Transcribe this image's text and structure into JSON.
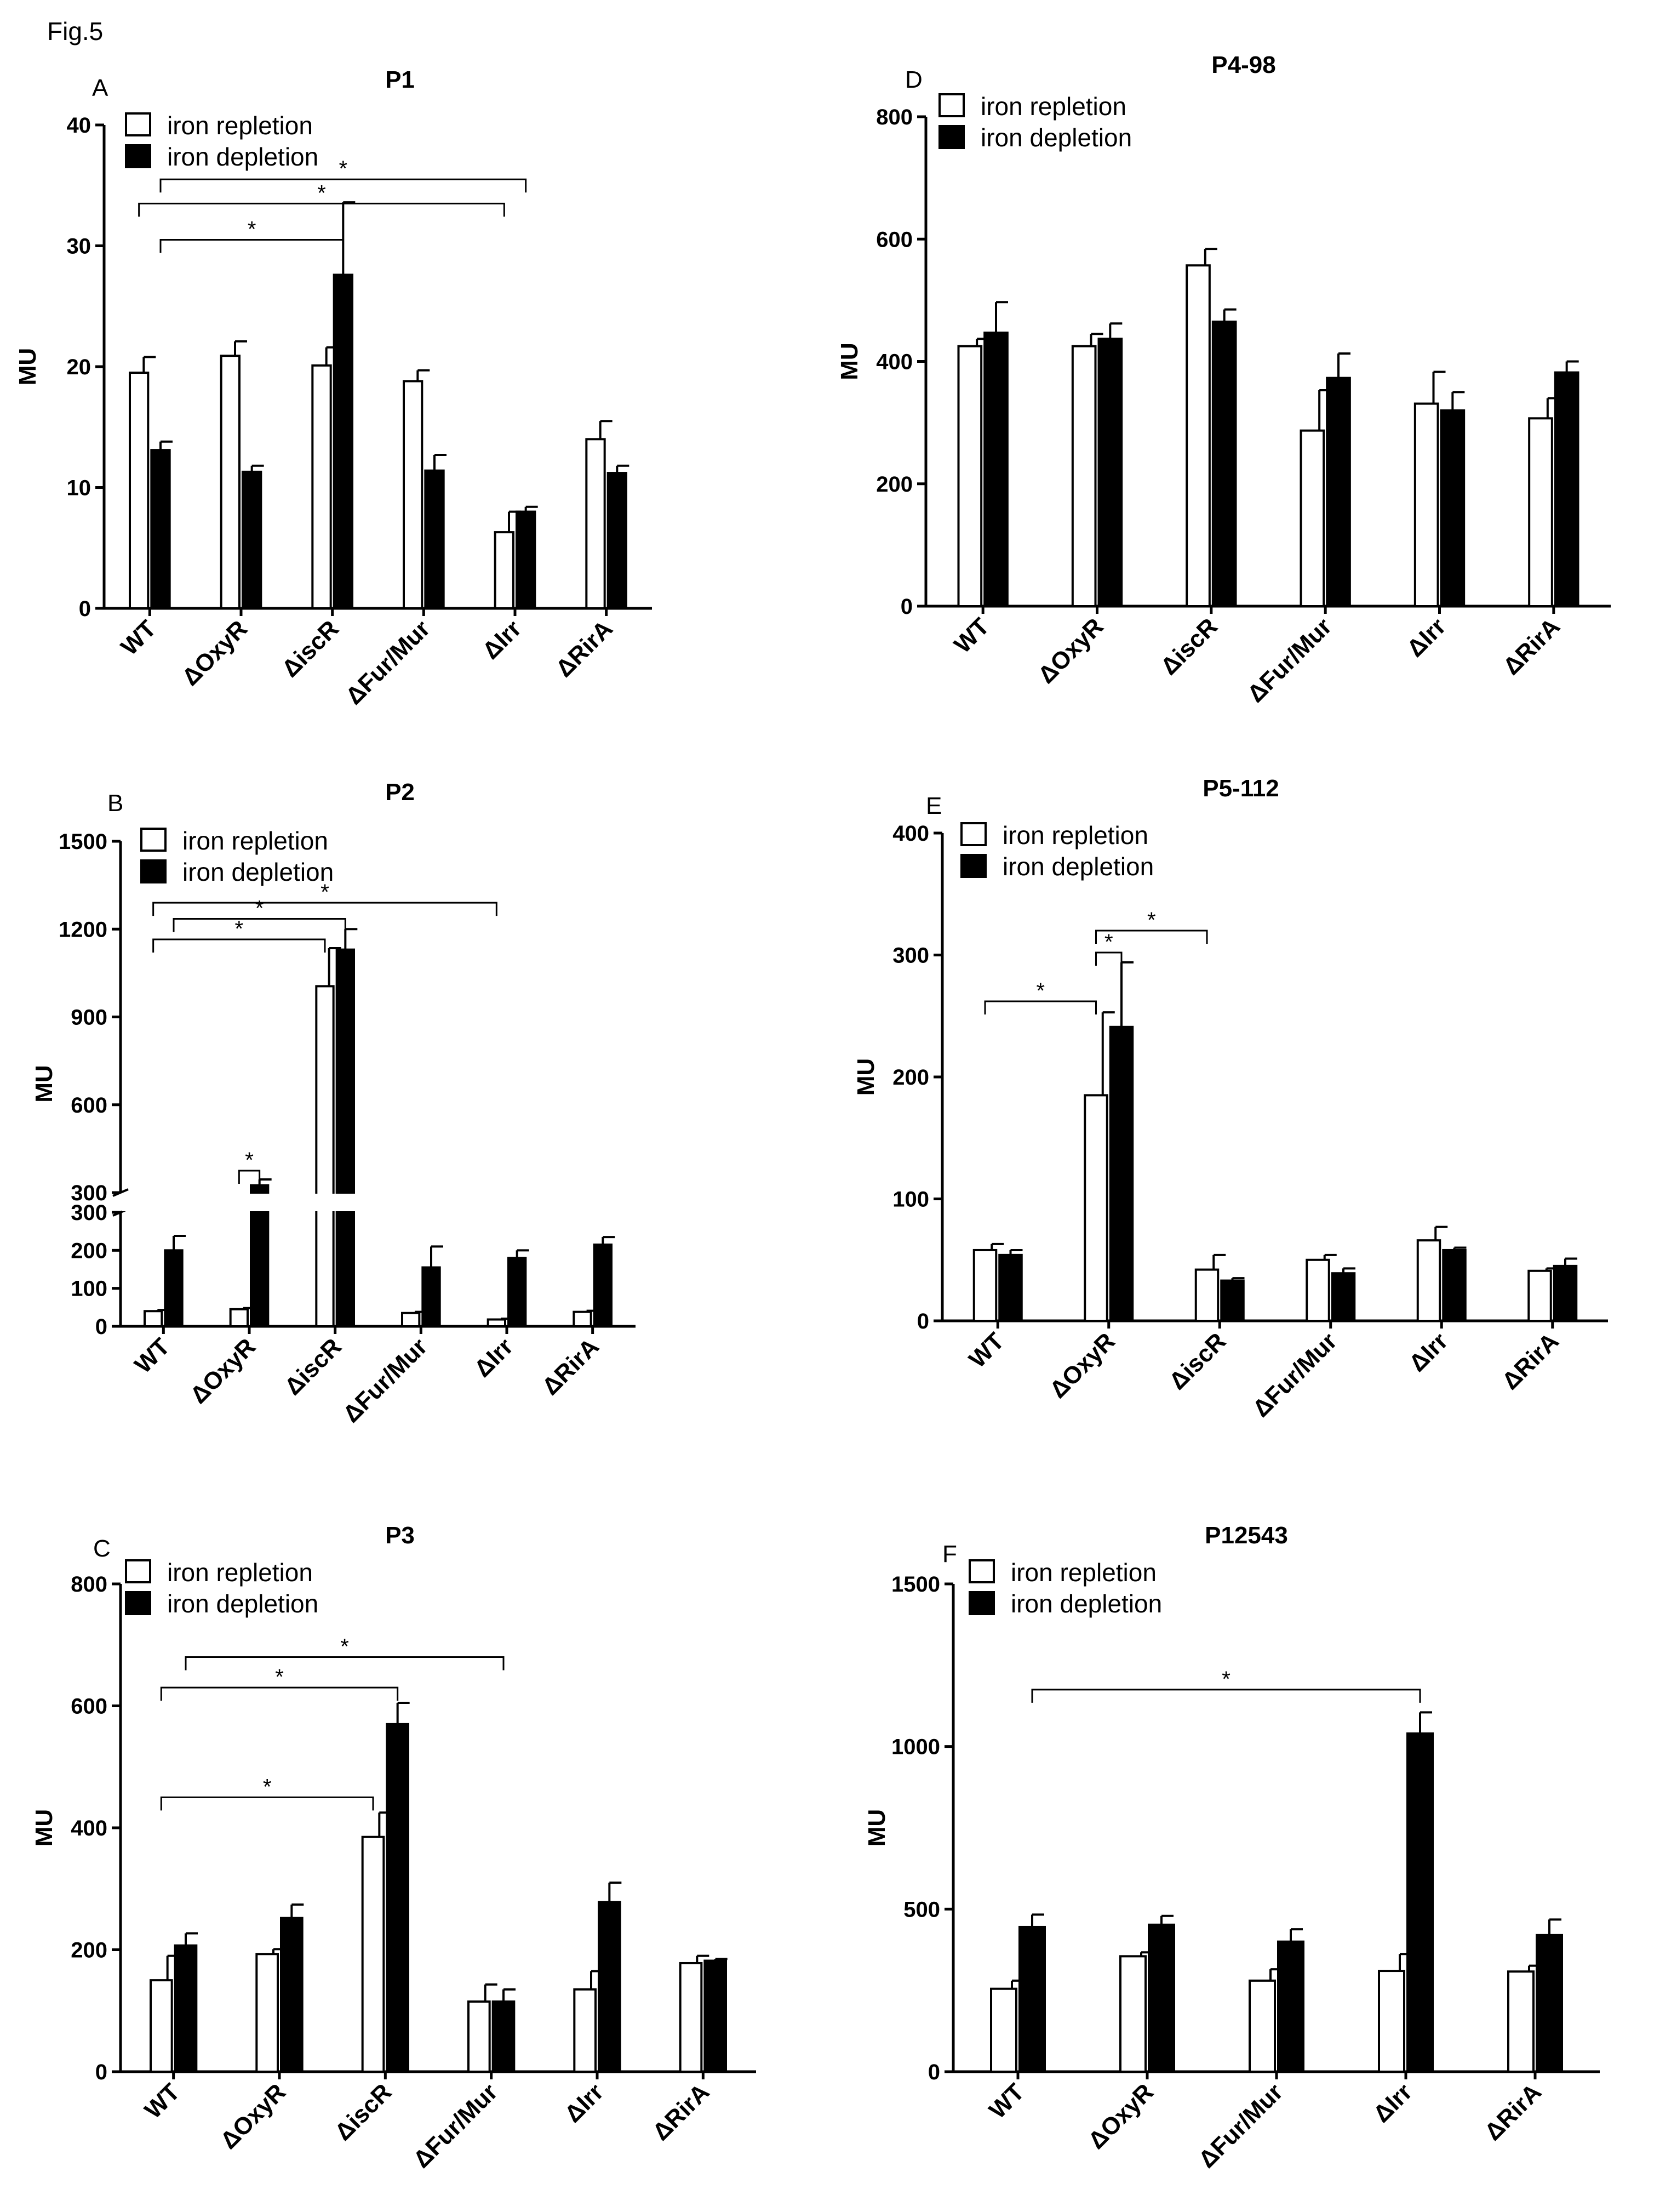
{
  "figure_label": "Fig.5",
  "legend": {
    "repletion": "iron repletion",
    "depletion": "iron depletion"
  },
  "colors": {
    "repletion": "#ffffff",
    "depletion": "#000000",
    "axis": "#000000"
  },
  "chart_data": [
    {
      "panel": "A",
      "title": "P1",
      "type": "bar",
      "ylabel": "MU",
      "ylim": [
        0,
        40
      ],
      "yticks": [
        0,
        10,
        20,
        30,
        40
      ],
      "categories": [
        "WT",
        "ΔOxyR",
        "ΔiscR",
        "ΔFur/Mur",
        "ΔIrr",
        "ΔRirA"
      ],
      "series": [
        {
          "name": "iron repletion",
          "values": [
            19.5,
            20.9,
            20.1,
            18.8,
            6.3,
            14.0
          ],
          "errors": [
            1.3,
            1.2,
            1.5,
            0.9,
            1.7,
            1.5
          ]
        },
        {
          "name": "iron depletion",
          "values": [
            13.1,
            11.3,
            27.6,
            11.4,
            8.0,
            11.2
          ],
          "errors": [
            0.7,
            0.5,
            6.0,
            1.3,
            0.4,
            0.6
          ]
        }
      ],
      "significance": [
        {
          "from": [
            0,
            1
          ],
          "to": [
            2,
            1
          ],
          "level": 30.5,
          "label": "*"
        },
        {
          "from": [
            0,
            0
          ],
          "to": [
            4,
            0
          ],
          "level": 33.5,
          "label": "*"
        },
        {
          "from": [
            0,
            1
          ],
          "to": [
            4,
            1
          ],
          "level": 35.5,
          "label": "*"
        }
      ]
    },
    {
      "panel": "D",
      "title": "P4-98",
      "type": "bar",
      "ylabel": "MU",
      "ylim": [
        0,
        800
      ],
      "yticks": [
        0,
        200,
        400,
        600,
        800
      ],
      "categories": [
        "WT",
        "ΔOxyR",
        "ΔiscR",
        "ΔFur/Mur",
        "ΔIrr",
        "ΔRirA"
      ],
      "series": [
        {
          "name": "iron repletion",
          "values": [
            425,
            425,
            557,
            287,
            331,
            307
          ],
          "errors": [
            12,
            20,
            27,
            66,
            52,
            33
          ]
        },
        {
          "name": "iron depletion",
          "values": [
            447,
            437,
            465,
            373,
            320,
            382
          ],
          "errors": [
            50,
            25,
            20,
            40,
            30,
            18
          ]
        }
      ],
      "significance": []
    },
    {
      "panel": "B",
      "title": "P2",
      "type": "bar",
      "ylabel": "MU",
      "axis_break": {
        "lower": [
          0,
          300
        ],
        "upper": [
          300,
          1500
        ]
      },
      "lower_ticks": [
        0,
        100,
        200,
        300
      ],
      "upper_ticks": [
        300,
        600,
        900,
        1200,
        1500
      ],
      "categories": [
        "WT",
        "ΔOxyR",
        "ΔiscR",
        "ΔFur/Mur",
        "ΔIrr",
        "ΔRirA"
      ],
      "series": [
        {
          "name": "iron repletion",
          "values": [
            40,
            45,
            1005,
            35,
            18,
            38
          ],
          "errors": [
            3,
            3,
            130,
            3,
            2,
            3
          ]
        },
        {
          "name": "iron depletion",
          "values": [
            200,
            325,
            1130,
            155,
            180,
            215
          ],
          "errors": [
            38,
            20,
            70,
            55,
            20,
            20
          ]
        }
      ],
      "significance": [
        {
          "from": [
            1,
            0
          ],
          "to": [
            1,
            1
          ],
          "level": 375,
          "label": "*"
        },
        {
          "from": [
            0,
            0
          ],
          "to": [
            2,
            0
          ],
          "level": 1165,
          "label": "*"
        },
        {
          "from": [
            0,
            1
          ],
          "to": [
            2,
            1
          ],
          "level": 1235,
          "label": "*"
        },
        {
          "from": [
            0,
            0
          ],
          "to": [
            4,
            0
          ],
          "level": 1290,
          "label": "*"
        }
      ]
    },
    {
      "panel": "E",
      "title": "P5-112",
      "type": "bar",
      "ylabel": "MU",
      "ylim": [
        0,
        400
      ],
      "yticks": [
        0,
        100,
        200,
        300,
        400
      ],
      "categories": [
        "WT",
        "ΔOxyR",
        "ΔiscR",
        "ΔFur/Mur",
        "ΔIrr",
        "ΔRirA"
      ],
      "series": [
        {
          "name": "iron repletion",
          "values": [
            58,
            185,
            42,
            50,
            66,
            41
          ],
          "errors": [
            5,
            68,
            12,
            4,
            11,
            2
          ]
        },
        {
          "name": "iron depletion",
          "values": [
            54,
            241,
            33,
            39,
            58,
            45
          ],
          "errors": [
            4,
            53,
            2,
            4,
            2,
            6
          ]
        }
      ],
      "significance": [
        {
          "from": [
            0,
            0
          ],
          "to": [
            1,
            0
          ],
          "level": 262,
          "label": "*"
        },
        {
          "from": [
            1,
            0
          ],
          "to": [
            1,
            1
          ],
          "level": 302,
          "label": "*"
        },
        {
          "from": [
            1,
            0
          ],
          "to": [
            2,
            0
          ],
          "level": 320,
          "label": "*"
        }
      ]
    },
    {
      "panel": "C",
      "title": "P3",
      "type": "bar",
      "ylabel": "MU",
      "ylim": [
        0,
        800
      ],
      "yticks": [
        0,
        200,
        400,
        600,
        800
      ],
      "categories": [
        "WT",
        "ΔOxyR",
        "ΔiscR",
        "ΔFur/Mur",
        "ΔIrr",
        "ΔRirA"
      ],
      "series": [
        {
          "name": "iron repletion",
          "values": [
            150,
            193,
            385,
            115,
            135,
            178
          ],
          "errors": [
            40,
            8,
            40,
            28,
            30,
            12
          ]
        },
        {
          "name": "iron depletion",
          "values": [
            207,
            252,
            570,
            115,
            278,
            182
          ],
          "errors": [
            20,
            22,
            35,
            20,
            32,
            3
          ]
        }
      ],
      "significance": [
        {
          "from": [
            0,
            0
          ],
          "to": [
            2,
            0
          ],
          "level": 450,
          "label": "*"
        },
        {
          "from": [
            0,
            0
          ],
          "to": [
            2,
            1
          ],
          "level": 630,
          "label": "*"
        },
        {
          "from": [
            0,
            1
          ],
          "to": [
            3,
            1
          ],
          "level": 680,
          "label": "*"
        }
      ]
    },
    {
      "panel": "F",
      "title": "P12543",
      "type": "bar",
      "ylabel": "MU",
      "ylim": [
        0,
        1500
      ],
      "yticks": [
        0,
        500,
        1000,
        1500
      ],
      "categories": [
        "WT",
        "ΔOxyR",
        "ΔFur/Mur",
        "ΔIrr",
        "ΔRirA"
      ],
      "series": [
        {
          "name": "iron repletion",
          "values": [
            255,
            355,
            280,
            310,
            308
          ],
          "errors": [
            25,
            12,
            35,
            52,
            18
          ]
        },
        {
          "name": "iron depletion",
          "values": [
            445,
            452,
            400,
            1040,
            420
          ],
          "errors": [
            38,
            27,
            38,
            65,
            48
          ]
        }
      ],
      "significance": [
        {
          "from": [
            0,
            1
          ],
          "to": [
            3,
            1
          ],
          "level": 1175,
          "label": "*"
        }
      ]
    }
  ]
}
